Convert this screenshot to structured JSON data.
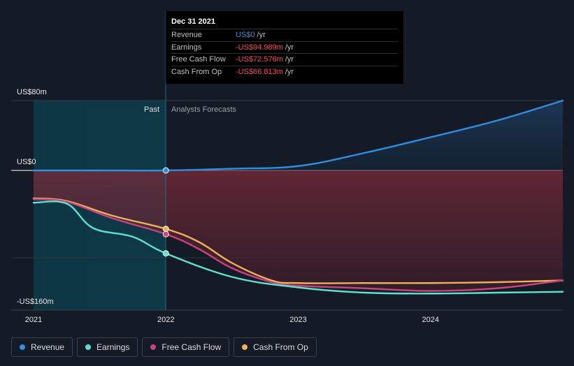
{
  "tooltip": {
    "date": "Dec 31 2021",
    "rows": [
      {
        "label": "Revenue",
        "value": "US$0",
        "unit": "/yr",
        "color": "#2e8fe0"
      },
      {
        "label": "Earnings",
        "value": "-US$94.989m",
        "unit": "/yr",
        "color": "#ef4a5a"
      },
      {
        "label": "Free Cash Flow",
        "value": "-US$72.576m",
        "unit": "/yr",
        "color": "#ef4a5a"
      },
      {
        "label": "Cash From Op",
        "value": "-US$66.813m",
        "unit": "/yr",
        "color": "#ef4a5a"
      }
    ]
  },
  "chart_data": {
    "type": "line",
    "title": "",
    "xlabel": "",
    "ylabel": "",
    "past_label": "Past",
    "forecast_label": "Analysts Forecasts",
    "y_tick_labels": [
      "US$80m",
      "US$0",
      "-US$160m"
    ],
    "y_ticks": [
      80,
      0,
      -160
    ],
    "ylim": [
      -160,
      80
    ],
    "xlim": [
      2021.0,
      2025.0
    ],
    "x_tick_labels": [
      "2021",
      "2022",
      "2023",
      "2024"
    ],
    "x_ticks": [
      2021,
      2022,
      2023,
      2024
    ],
    "past_end": 2022.0,
    "series": [
      {
        "name": "Revenue",
        "color": "#2e8fe0",
        "points": [
          [
            2021.0,
            0
          ],
          [
            2021.5,
            0
          ],
          [
            2022.0,
            0
          ],
          [
            2022.5,
            2
          ],
          [
            2023.0,
            5
          ],
          [
            2023.5,
            20
          ],
          [
            2024.0,
            38
          ],
          [
            2024.5,
            57
          ],
          [
            2025.0,
            80
          ]
        ]
      },
      {
        "name": "Earnings",
        "color": "#5fe0cf",
        "points": [
          [
            2021.0,
            -37
          ],
          [
            2021.25,
            -38
          ],
          [
            2021.45,
            -66
          ],
          [
            2021.75,
            -76
          ],
          [
            2022.0,
            -95
          ],
          [
            2022.5,
            -122
          ],
          [
            2023.0,
            -134
          ],
          [
            2023.5,
            -140
          ],
          [
            2024.0,
            -141
          ],
          [
            2024.5,
            -140
          ],
          [
            2025.0,
            -139
          ]
        ]
      },
      {
        "name": "Free Cash Flow",
        "color": "#c8437d",
        "points": [
          [
            2021.0,
            -33
          ],
          [
            2021.25,
            -36
          ],
          [
            2021.6,
            -55
          ],
          [
            2022.0,
            -73
          ],
          [
            2022.25,
            -90
          ],
          [
            2022.5,
            -112
          ],
          [
            2022.8,
            -128
          ],
          [
            2023.0,
            -132
          ],
          [
            2023.5,
            -135
          ],
          [
            2024.0,
            -138
          ],
          [
            2024.5,
            -135
          ],
          [
            2025.0,
            -126
          ]
        ]
      },
      {
        "name": "Cash From Op",
        "color": "#eeb05d",
        "points": [
          [
            2021.0,
            -32
          ],
          [
            2021.25,
            -35
          ],
          [
            2021.6,
            -52
          ],
          [
            2022.0,
            -67
          ],
          [
            2022.25,
            -82
          ],
          [
            2022.5,
            -106
          ],
          [
            2022.8,
            -126
          ],
          [
            2023.0,
            -129
          ],
          [
            2023.5,
            -129
          ],
          [
            2024.0,
            -129
          ],
          [
            2024.5,
            -128
          ],
          [
            2025.0,
            -126
          ]
        ]
      }
    ]
  },
  "legend": [
    {
      "label": "Revenue",
      "color": "#2e8fe0"
    },
    {
      "label": "Earnings",
      "color": "#5fe0cf"
    },
    {
      "label": "Free Cash Flow",
      "color": "#c8437d"
    },
    {
      "label": "Cash From Op",
      "color": "#eeb05d"
    }
  ]
}
